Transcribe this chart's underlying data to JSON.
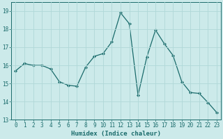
{
  "x": [
    0,
    1,
    2,
    3,
    4,
    5,
    6,
    7,
    8,
    9,
    10,
    11,
    12,
    13,
    14,
    15,
    16,
    17,
    18,
    19,
    20,
    21,
    22,
    23
  ],
  "y": [
    15.7,
    16.1,
    16.0,
    16.0,
    15.8,
    15.1,
    14.9,
    14.85,
    15.9,
    16.5,
    16.65,
    17.3,
    18.9,
    18.3,
    14.35,
    16.45,
    17.95,
    17.2,
    16.55,
    15.1,
    14.5,
    14.45,
    13.95,
    13.4
  ],
  "line_color": "#1a6b6b",
  "marker": "D",
  "marker_size": 2.0,
  "bg_color": "#cceaea",
  "grid_color": "#b0d8d8",
  "xlabel": "Humidex (Indice chaleur)",
  "ylim": [
    13,
    19.5
  ],
  "xlim": [
    -0.5,
    23.5
  ],
  "yticks": [
    13,
    14,
    15,
    16,
    17,
    18,
    19
  ],
  "xticks": [
    0,
    1,
    2,
    3,
    4,
    5,
    6,
    7,
    8,
    9,
    10,
    11,
    12,
    13,
    14,
    15,
    16,
    17,
    18,
    19,
    20,
    21,
    22,
    23
  ],
  "label_fontsize": 6.5,
  "tick_fontsize": 5.5
}
